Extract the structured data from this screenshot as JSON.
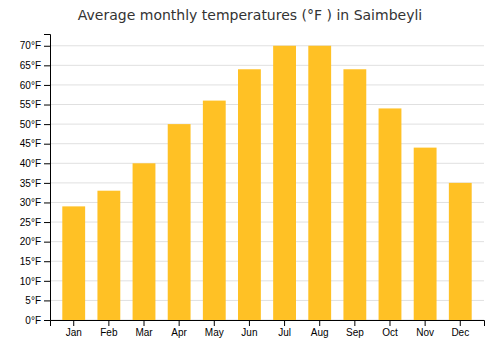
{
  "chart_data": {
    "type": "bar",
    "title": "Average monthly temperatures (°F ) in Saimbeyli",
    "categories": [
      "Jan",
      "Feb",
      "Mar",
      "Apr",
      "May",
      "Jun",
      "Jul",
      "Aug",
      "Sep",
      "Oct",
      "Nov",
      "Dec"
    ],
    "values": [
      29,
      33,
      40,
      50,
      56,
      64,
      70,
      70,
      64,
      54,
      44,
      35
    ],
    "color": "#FFC125",
    "ylim": [
      0,
      73
    ],
    "yticks": [
      {
        "value": 0,
        "label": "0°F"
      },
      {
        "value": 5,
        "label": "5°F"
      },
      {
        "value": 10,
        "label": "10°F"
      },
      {
        "value": 15,
        "label": "15°F"
      },
      {
        "value": 20,
        "label": "20°F"
      },
      {
        "value": 25,
        "label": "25°F"
      },
      {
        "value": 30,
        "label": "30°F"
      },
      {
        "value": 35,
        "label": "35°F"
      },
      {
        "value": 40,
        "label": "40°F"
      },
      {
        "value": 45,
        "label": "45°F"
      },
      {
        "value": 50,
        "label": "50°F"
      },
      {
        "value": 55,
        "label": "55°F"
      },
      {
        "value": 60,
        "label": "60°F"
      },
      {
        "value": 65,
        "label": "65°F"
      },
      {
        "value": 70,
        "label": "70°F"
      }
    ],
    "grid": true
  }
}
